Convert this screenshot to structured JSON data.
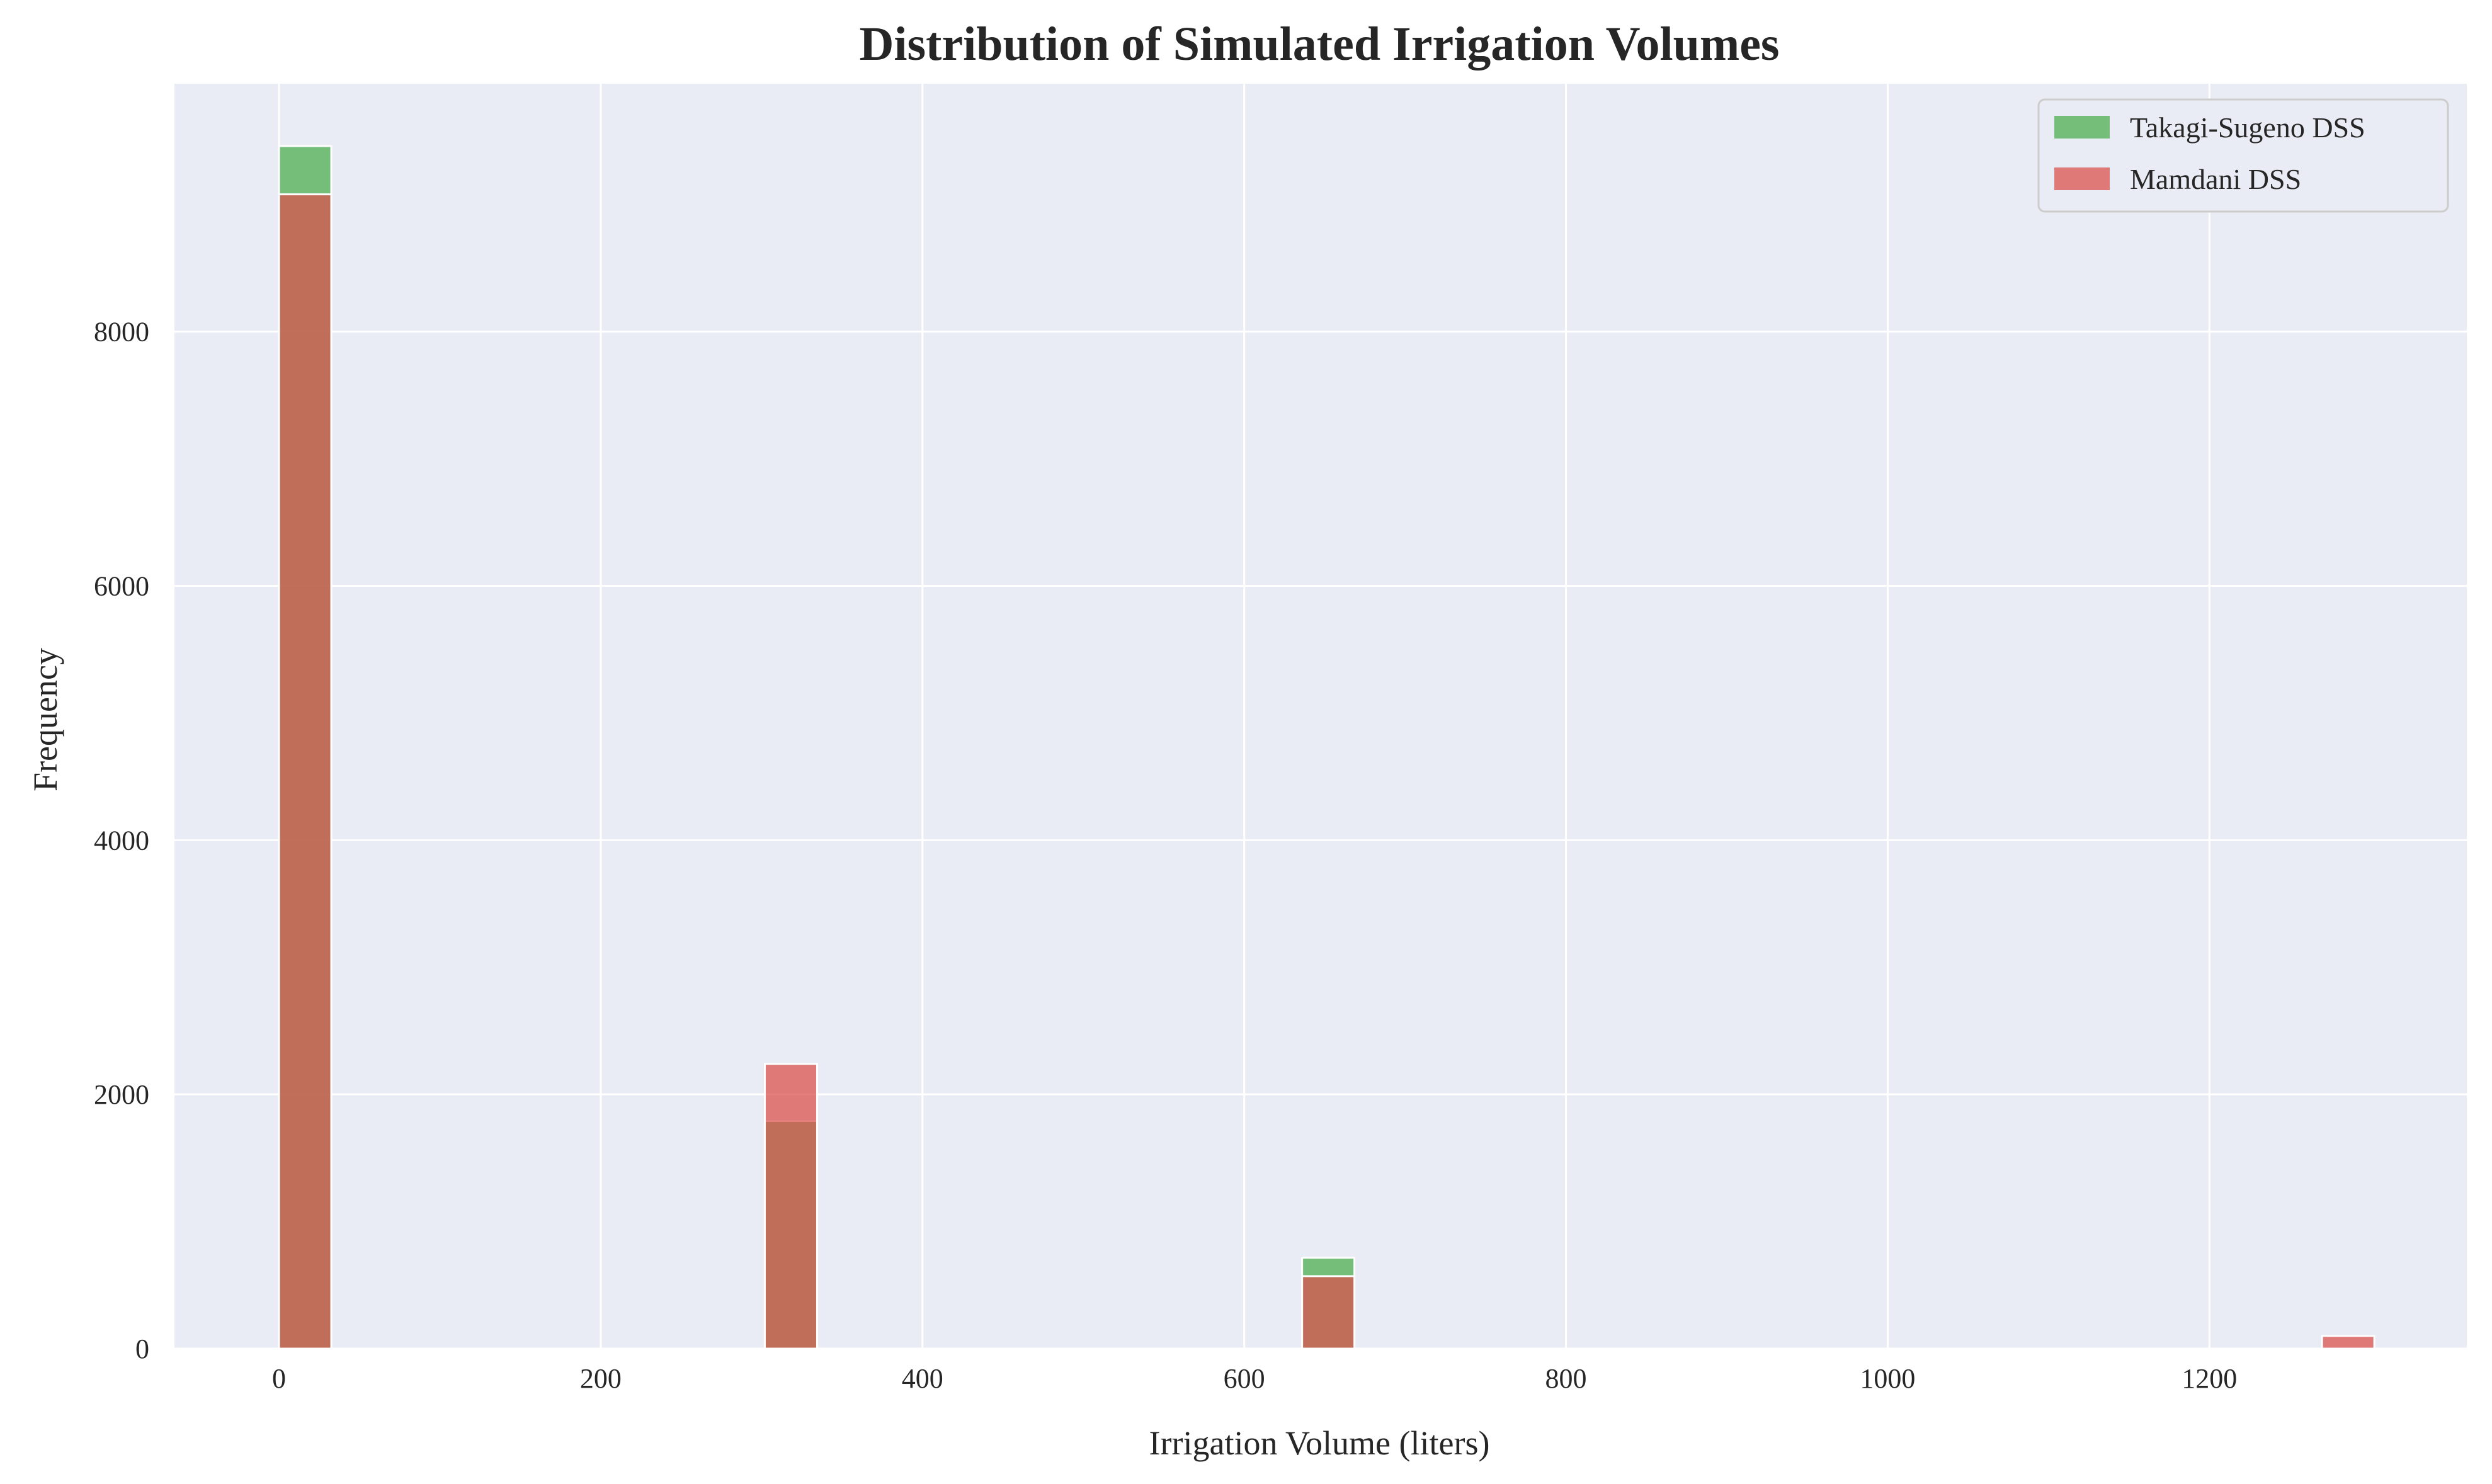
{
  "chart_data": {
    "type": "bar",
    "title": "Distribution of Simulated Irrigation Volumes",
    "xlabel": "Irrigation Volume (liters)",
    "ylabel": "Frequency",
    "xlim": [
      -65,
      1360
    ],
    "ylim": [
      0,
      9950
    ],
    "xticks": [
      0,
      200,
      400,
      600,
      800,
      1000,
      1200
    ],
    "yticks": [
      0,
      2000,
      4000,
      6000,
      8000
    ],
    "grid": true,
    "legend_position": "top-right",
    "bin_width": 32.5,
    "series": [
      {
        "name": "Takagi-Sugeno DSS",
        "color": "#4caf50",
        "bins": [
          {
            "x_start": 0,
            "value": 9460
          },
          {
            "x_start": 302,
            "value": 1790
          },
          {
            "x_start": 636,
            "value": 715
          }
        ]
      },
      {
        "name": "Mamdani DSS",
        "color": "#d9534f",
        "bins": [
          {
            "x_start": 0,
            "value": 9080
          },
          {
            "x_start": 302,
            "value": 2240
          },
          {
            "x_start": 636,
            "value": 570
          },
          {
            "x_start": 1270,
            "value": 100
          }
        ]
      }
    ]
  }
}
